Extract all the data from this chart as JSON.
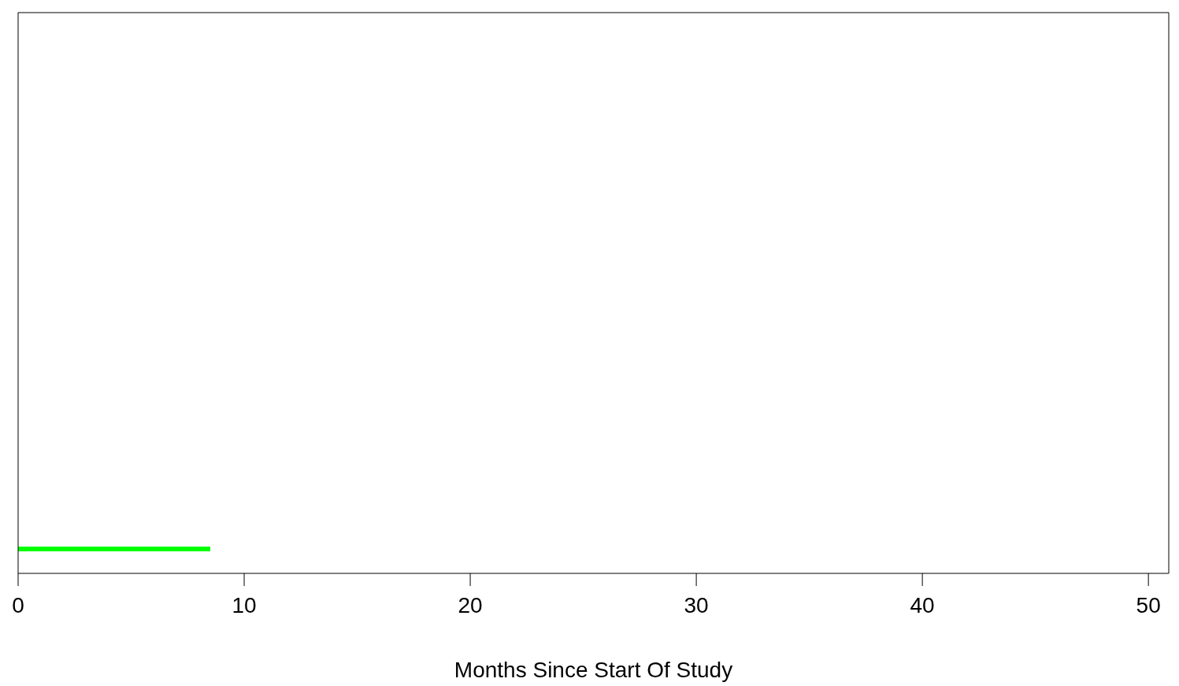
{
  "chart_data": {
    "type": "bar",
    "orientation": "horizontal",
    "xlabel": "Months Since Start Of Study",
    "categories": [
      null
    ],
    "values": [
      8.5
    ],
    "color": "#00ff00",
    "xlim": [
      0,
      50.9
    ],
    "xticks": [
      0,
      10,
      20,
      30,
      40,
      50
    ],
    "tick_labels": "x"
  }
}
